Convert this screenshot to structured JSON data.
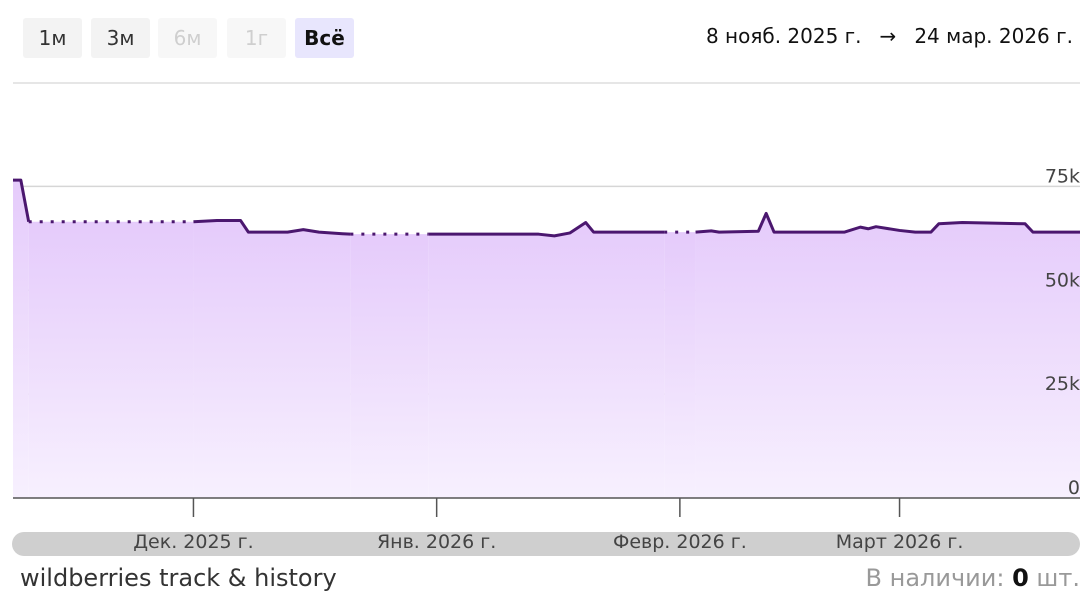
{
  "controls": {
    "ranges": [
      "1м",
      "3м",
      "6м",
      "1г",
      "Всё"
    ]
  },
  "date_range": {
    "from": "8 нояб. 2025 г.",
    "arrow": "→",
    "to": "24 мар. 2026 г."
  },
  "chart_data": {
    "type": "area",
    "xlim": [
      "2025-11-08",
      "2026-03-24"
    ],
    "ylim": [
      0,
      97000
    ],
    "xticks": [
      {
        "value": "2025-12-01",
        "label": "Дек. 2025 г."
      },
      {
        "value": "2026-01-01",
        "label": "Янв. 2026 г."
      },
      {
        "value": "2026-02-01",
        "label": "Февр. 2026 г."
      },
      {
        "value": "2026-03-01",
        "label": "Март 2026 г."
      }
    ],
    "yticks": [
      {
        "value": 0,
        "label": "0"
      },
      {
        "value": 25000,
        "label": "25k"
      },
      {
        "value": 50000,
        "label": "50k"
      },
      {
        "value": 75000,
        "label": "75k"
      }
    ],
    "grid": true,
    "x": [
      "2025-11-08",
      "2025-11-09",
      "2025-11-10",
      "2025-11-20",
      "2025-12-01",
      "2025-12-04",
      "2025-12-07",
      "2025-12-08",
      "2025-12-13",
      "2025-12-15",
      "2025-12-17",
      "2025-12-20",
      "2025-12-21",
      "2025-12-26",
      "2025-12-31",
      "2026-01-14",
      "2026-01-16",
      "2026-01-18",
      "2026-01-20",
      "2026-01-21",
      "2026-01-30",
      "2026-02-01",
      "2026-02-03",
      "2026-02-05",
      "2026-02-06",
      "2026-02-11",
      "2026-02-12",
      "2026-02-13",
      "2026-02-22",
      "2026-02-24",
      "2026-02-25",
      "2026-02-26",
      "2026-03-01",
      "2026-03-03",
      "2026-03-05",
      "2026-03-06",
      "2026-03-09",
      "2026-03-17",
      "2026-03-18",
      "2026-03-24"
    ],
    "series": [
      {
        "color": "#4b176f",
        "values": [
          76500,
          76500,
          66500,
          null,
          66500,
          66800,
          66800,
          64000,
          64000,
          64600,
          64000,
          63600,
          63500,
          null,
          63500,
          63500,
          63100,
          63800,
          66300,
          64000,
          64000,
          null,
          64000,
          64300,
          64000,
          64200,
          68500,
          64000,
          64000,
          65200,
          64800,
          65300,
          64400,
          64000,
          64000,
          66000,
          66300,
          66000,
          64000,
          64000
        ]
      }
    ]
  },
  "footer": {
    "brand": "wildberries track & history",
    "stock_label": "В наличии:",
    "stock_count": 0,
    "stock_unit": "шт."
  }
}
